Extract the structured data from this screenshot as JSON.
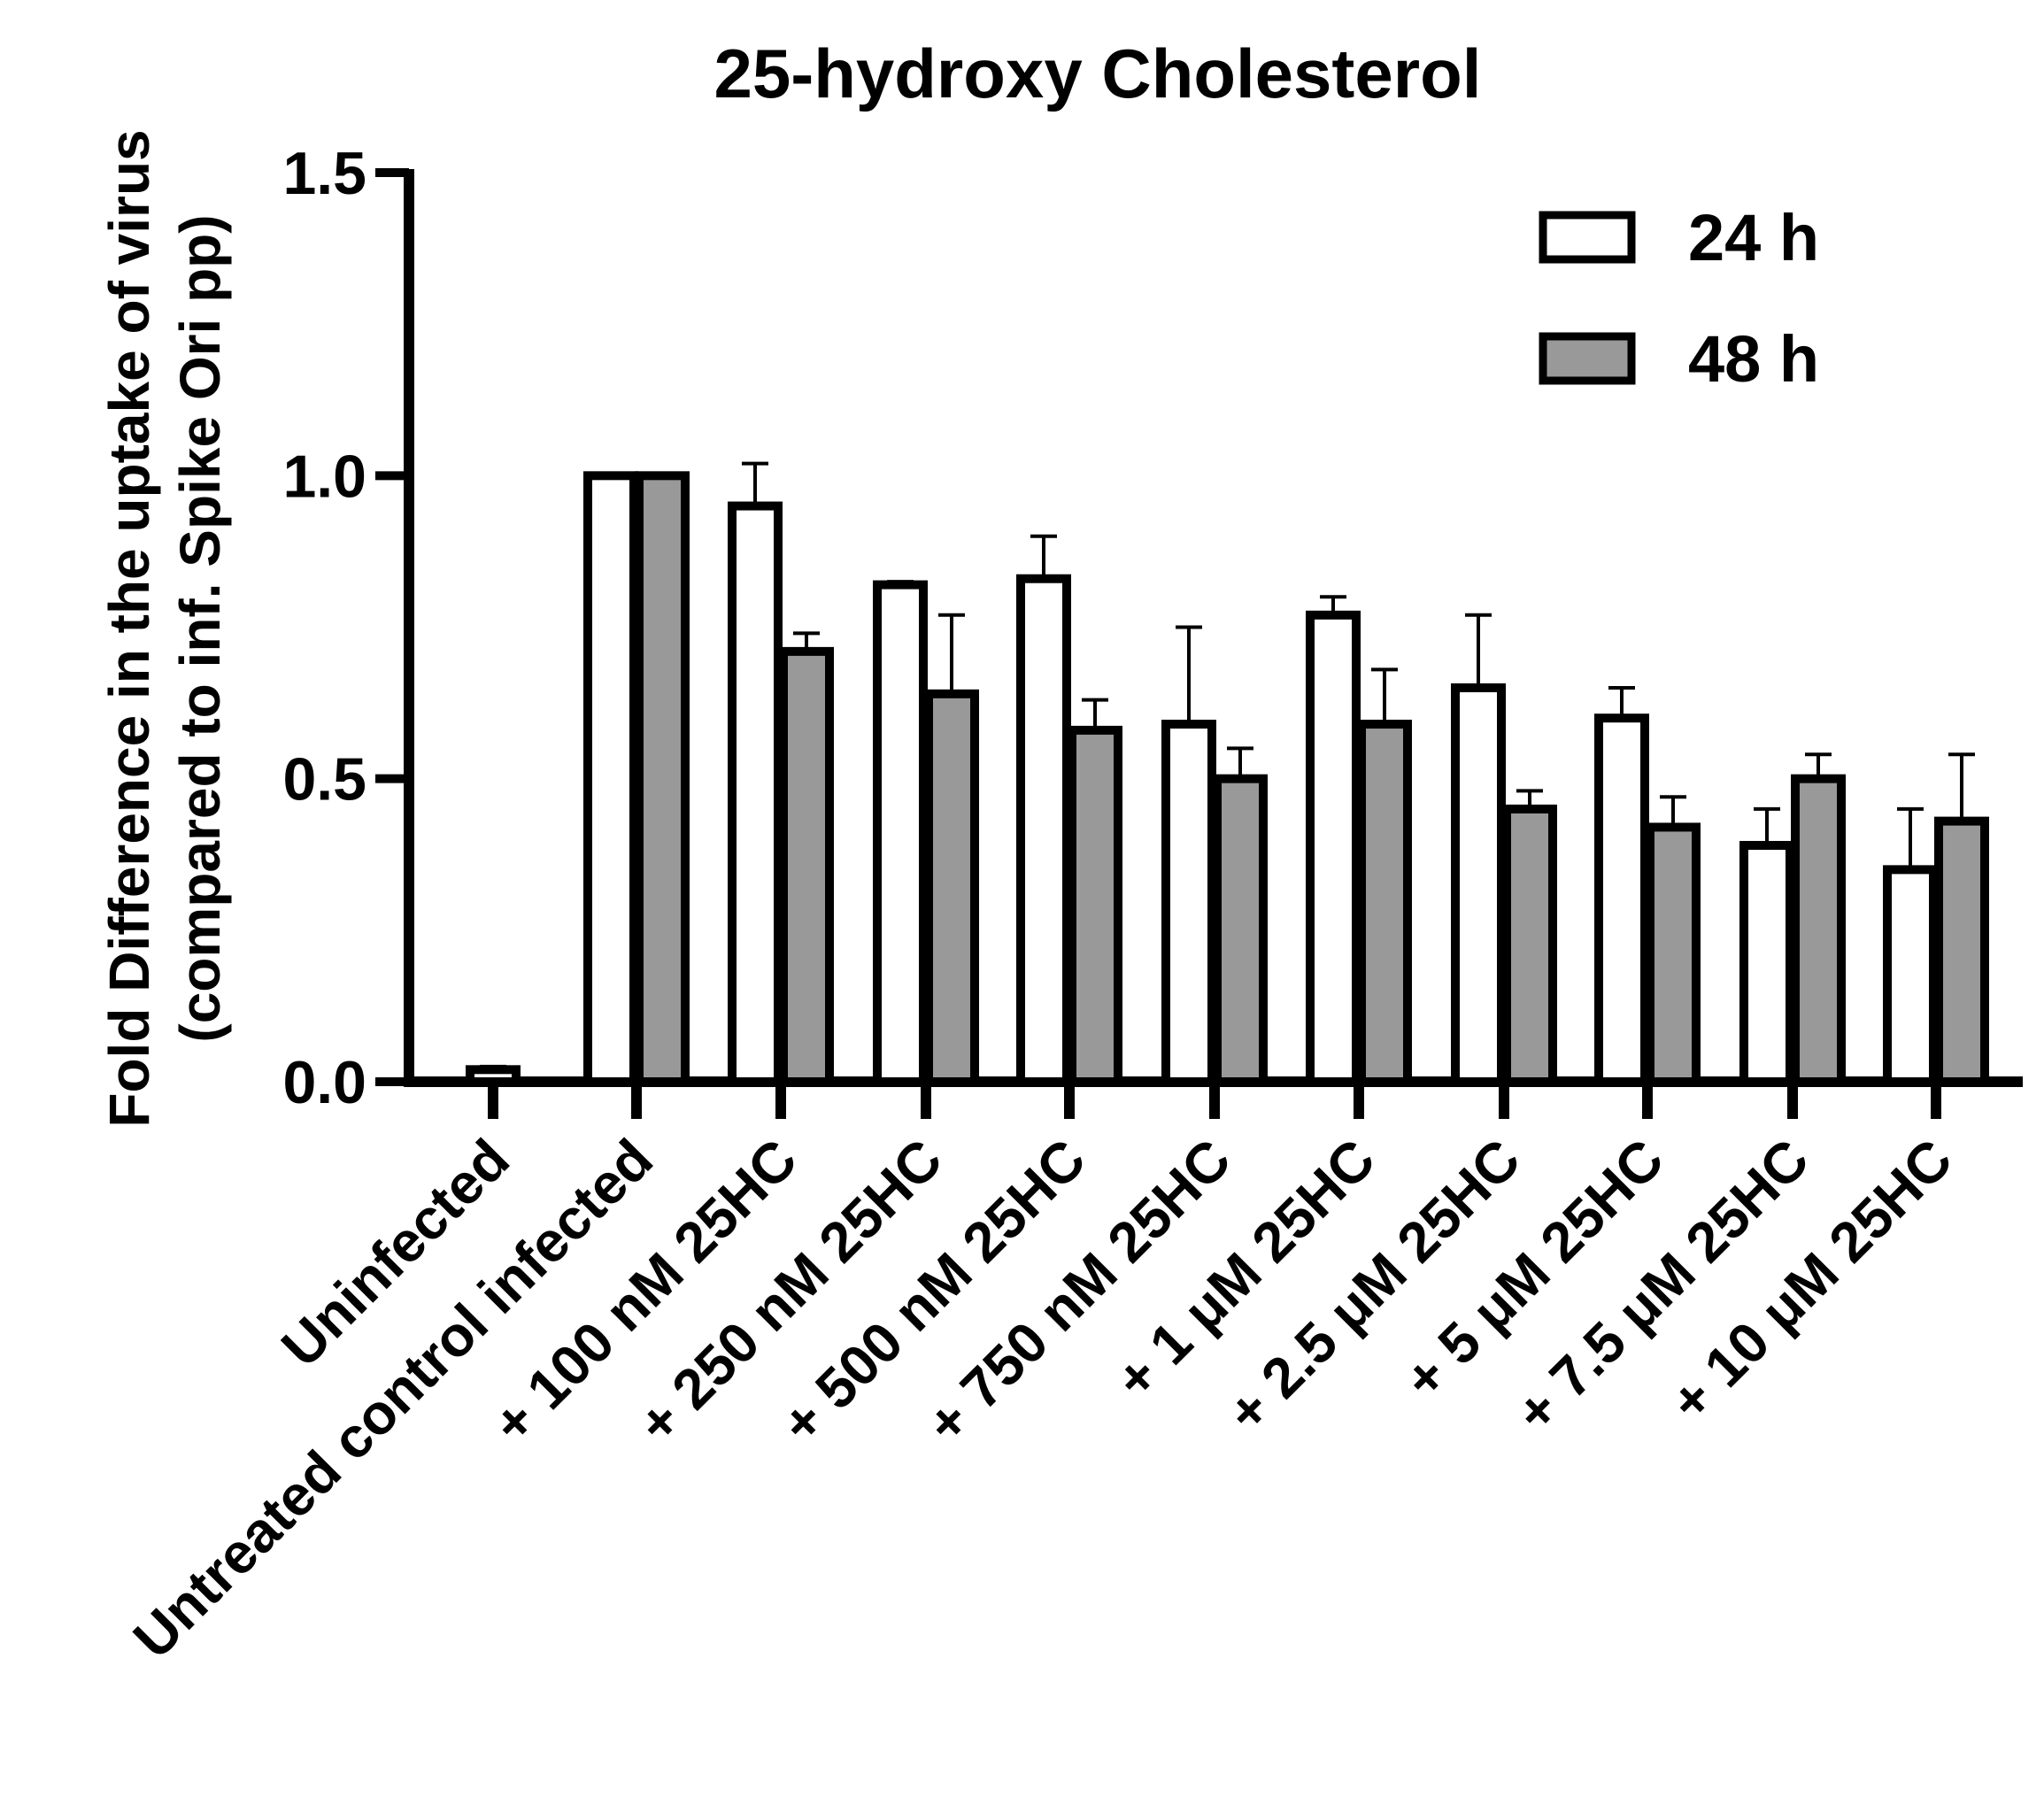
{
  "chart_data": {
    "type": "bar",
    "title": "25-hydroxy Cholesterol",
    "ylabel_line1": "Fold Difference in the uptake of virus",
    "ylabel_line2": "(compared to inf. Spike Ori pp)",
    "xlabel": "",
    "ylim": [
      0,
      1.5
    ],
    "yticks": [
      0.0,
      0.5,
      1.0,
      1.5
    ],
    "ytick_labels": [
      "0.0",
      "0.5",
      "1.0",
      "1.5"
    ],
    "legend_position": "top-right",
    "categories": [
      "Uninfected",
      "Untreated control infected",
      "+ 100 nM 25HC",
      "+ 250 nM 25HC",
      "+ 500 nM 25HC",
      "+ 750 nM 25HC",
      "+ 1 μM 25HC",
      "+ 2.5 μM 25HC",
      "+ 5 μM 25HC",
      "+ 7.5 μM 25HC",
      "+ 10 μM 25HC"
    ],
    "series": [
      {
        "name": "24 h",
        "color": "#ffffff",
        "values": [
          0.02,
          1.0,
          0.95,
          0.82,
          0.83,
          0.59,
          0.77,
          0.65,
          0.6,
          0.39,
          0.35
        ],
        "errors": [
          0.005,
          0.0,
          0.07,
          0.005,
          0.07,
          0.16,
          0.03,
          0.12,
          0.05,
          0.06,
          0.1
        ]
      },
      {
        "name": "48 h",
        "color": "#999999",
        "values": [
          null,
          1.0,
          0.71,
          0.64,
          0.58,
          0.5,
          0.59,
          0.45,
          0.42,
          0.5,
          0.43
        ],
        "errors": [
          null,
          0.0,
          0.03,
          0.13,
          0.05,
          0.05,
          0.09,
          0.03,
          0.05,
          0.04,
          0.11
        ]
      }
    ]
  }
}
